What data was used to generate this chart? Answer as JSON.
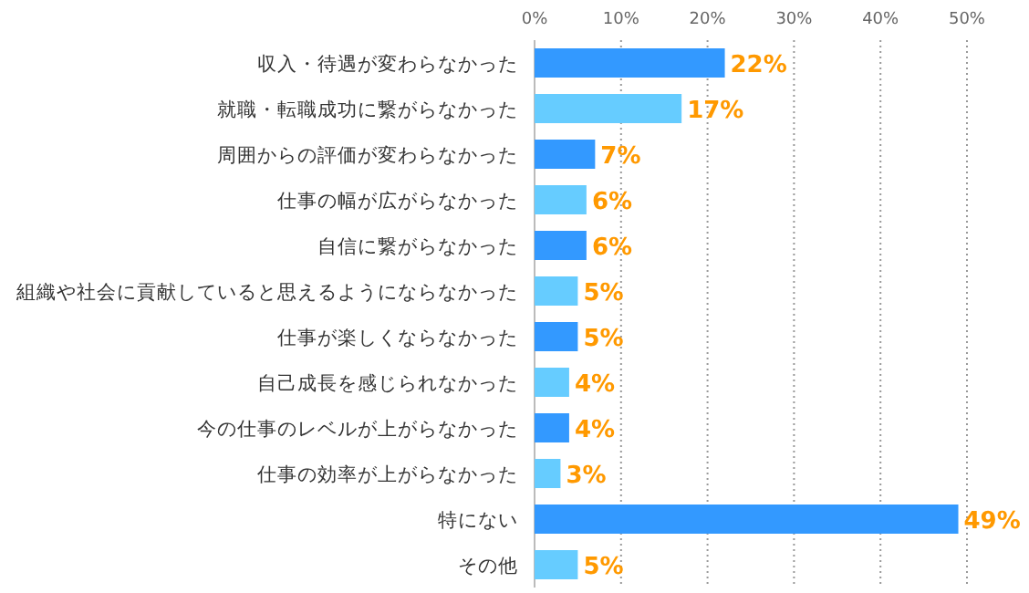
{
  "chart_data": {
    "type": "bar",
    "orientation": "horizontal",
    "categories": [
      "収入・待遇が変わらなかった",
      "就職・転職成功に繋がらなかった",
      "周囲からの評価が変わらなかった",
      "仕事の幅が広がらなかった",
      "自信に繋がらなかった",
      "組織や社会に貢献していると思えるようにならなかった",
      "仕事が楽しくならなかった",
      "自己成長を感じられなかった",
      "今の仕事のレベルが上がらなかった",
      "仕事の効率が上がらなかった",
      "特にない",
      "その他"
    ],
    "values": [
      22,
      17,
      7,
      6,
      6,
      5,
      5,
      4,
      4,
      3,
      49,
      5
    ],
    "value_labels": [
      "22%",
      "17%",
      "7%",
      "6%",
      "6%",
      "5%",
      "5%",
      "4%",
      "4%",
      "3%",
      "49%",
      "5%"
    ],
    "colors": [
      "#3399ff",
      "#66ccff",
      "#3399ff",
      "#66ccff",
      "#3399ff",
      "#66ccff",
      "#3399ff",
      "#66ccff",
      "#3399ff",
      "#66ccff",
      "#3399ff",
      "#66ccff"
    ],
    "xlim": [
      0,
      50
    ],
    "xticks": [
      {
        "value": 0,
        "label": "0%"
      },
      {
        "value": 10,
        "label": "10%"
      },
      {
        "value": 20,
        "label": "20%"
      },
      {
        "value": 30,
        "label": "30%"
      },
      {
        "value": 40,
        "label": "40%"
      },
      {
        "value": 50,
        "label": "50%"
      }
    ],
    "grid": "x"
  }
}
